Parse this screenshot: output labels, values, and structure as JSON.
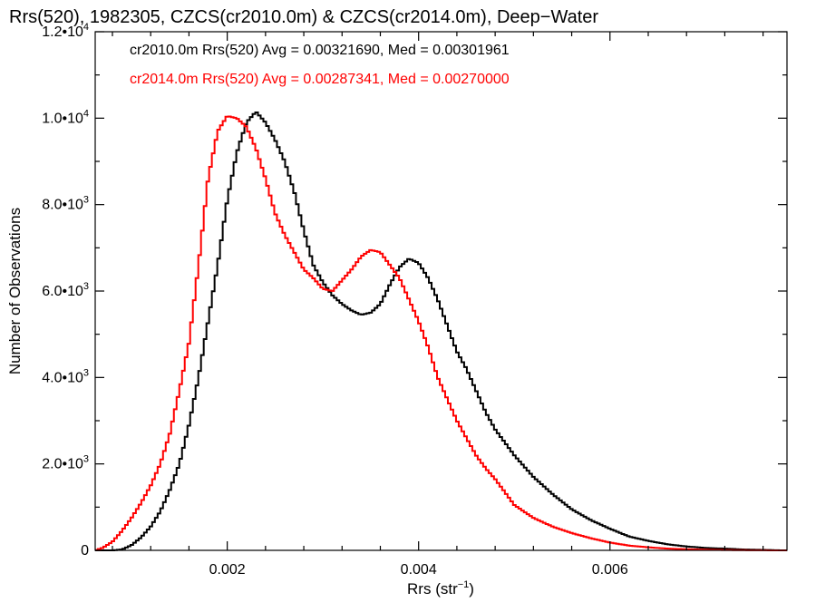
{
  "chart_data": {
    "type": "line",
    "title": "Rrs(520), 1982305, CZCS(cr2010.0m) & CZCS(cr2014.0m), Deep−Water",
    "xlabel": "Rrs (str",
    "xlabel_sup": "−1",
    "xlabel_end": ")",
    "ylabel": "Number of Observations",
    "xlim": [
      0.00062,
      0.00785
    ],
    "ylim": [
      0,
      12000
    ],
    "xticks": [
      {
        "value": 0.002,
        "label": "0.002"
      },
      {
        "value": 0.004,
        "label": "0.004"
      },
      {
        "value": 0.006,
        "label": "0.006"
      }
    ],
    "yticks": [
      {
        "value": 0,
        "mant": "0",
        "exp": ""
      },
      {
        "value": 2000,
        "mant": "2.0•10",
        "exp": "3"
      },
      {
        "value": 4000,
        "mant": "4.0•10",
        "exp": "3"
      },
      {
        "value": 6000,
        "mant": "6.0•10",
        "exp": "3"
      },
      {
        "value": 8000,
        "mant": "8.0•10",
        "exp": "3"
      },
      {
        "value": 10000,
        "mant": "1.0•10",
        "exp": "4"
      },
      {
        "value": 12000,
        "mant": "1.2•10",
        "exp": "4"
      }
    ],
    "grid": false,
    "legend": "top-left",
    "series": [
      {
        "name": "cr2010.0m",
        "color": "#000000",
        "annotation": "cr2010.0m Rrs(520) Avg = 0.00321690, Med = 0.00301961",
        "x": [
          0.00062,
          0.0008,
          0.0009,
          0.001,
          0.0011,
          0.0012,
          0.0013,
          0.0014,
          0.0015,
          0.0016,
          0.0017,
          0.0018,
          0.0019,
          0.002,
          0.0021,
          0.0022,
          0.0023,
          0.0024,
          0.0025,
          0.0026,
          0.0027,
          0.0028,
          0.0029,
          0.003,
          0.0031,
          0.0032,
          0.0033,
          0.0034,
          0.0035,
          0.0036,
          0.0037,
          0.0038,
          0.0039,
          0.004,
          0.0041,
          0.0042,
          0.0043,
          0.0044,
          0.0045,
          0.0046,
          0.0047,
          0.0048,
          0.0049,
          0.005,
          0.0052,
          0.0054,
          0.0056,
          0.0058,
          0.006,
          0.0062,
          0.0064,
          0.0066,
          0.0068,
          0.007,
          0.0072,
          0.0074,
          0.0076,
          0.0078
        ],
        "y": [
          0,
          0,
          20,
          120,
          300,
          550,
          900,
          1400,
          2000,
          2900,
          4000,
          5300,
          6600,
          8100,
          9200,
          9900,
          10150,
          9900,
          9500,
          9000,
          8300,
          7400,
          6600,
          6200,
          5900,
          5700,
          5550,
          5450,
          5500,
          5700,
          6150,
          6550,
          6750,
          6650,
          6300,
          5800,
          5200,
          4600,
          4200,
          3700,
          3200,
          2800,
          2500,
          2200,
          1700,
          1300,
          950,
          700,
          500,
          320,
          220,
          140,
          90,
          55,
          40,
          20,
          10,
          0
        ]
      },
      {
        "name": "cr2014.0m",
        "color": "#ff0000",
        "annotation": "cr2014.0m Rrs(520) Avg = 0.00287341, Med = 0.00270000",
        "x": [
          0.00062,
          0.0007,
          0.0008,
          0.0009,
          0.001,
          0.0011,
          0.0012,
          0.0013,
          0.0014,
          0.0015,
          0.0016,
          0.0017,
          0.0018,
          0.0019,
          0.002,
          0.0021,
          0.0022,
          0.0023,
          0.0024,
          0.0025,
          0.0026,
          0.0027,
          0.0028,
          0.0029,
          0.003,
          0.0031,
          0.0032,
          0.0033,
          0.0034,
          0.0035,
          0.0036,
          0.0037,
          0.0038,
          0.0039,
          0.004,
          0.0041,
          0.0042,
          0.0043,
          0.0044,
          0.0045,
          0.0046,
          0.0047,
          0.0048,
          0.0049,
          0.005,
          0.0052,
          0.0054,
          0.0056,
          0.0058,
          0.006,
          0.0062,
          0.0064,
          0.0066,
          0.0068,
          0.007,
          0.0072,
          0.0074,
          0.0076,
          0.0078
        ],
        "y": [
          0,
          60,
          200,
          450,
          750,
          1100,
          1500,
          2000,
          2700,
          3700,
          4800,
          6600,
          8600,
          9700,
          10050,
          10000,
          9800,
          9300,
          8600,
          7800,
          7300,
          6900,
          6500,
          6300,
          6050,
          6000,
          6250,
          6500,
          6800,
          6950,
          6900,
          6600,
          6300,
          5800,
          5300,
          4700,
          4000,
          3500,
          3000,
          2600,
          2200,
          1900,
          1650,
          1350,
          1050,
          750,
          550,
          400,
          280,
          180,
          110,
          70,
          40,
          25,
          15,
          8,
          4,
          2,
          0
        ]
      }
    ]
  }
}
